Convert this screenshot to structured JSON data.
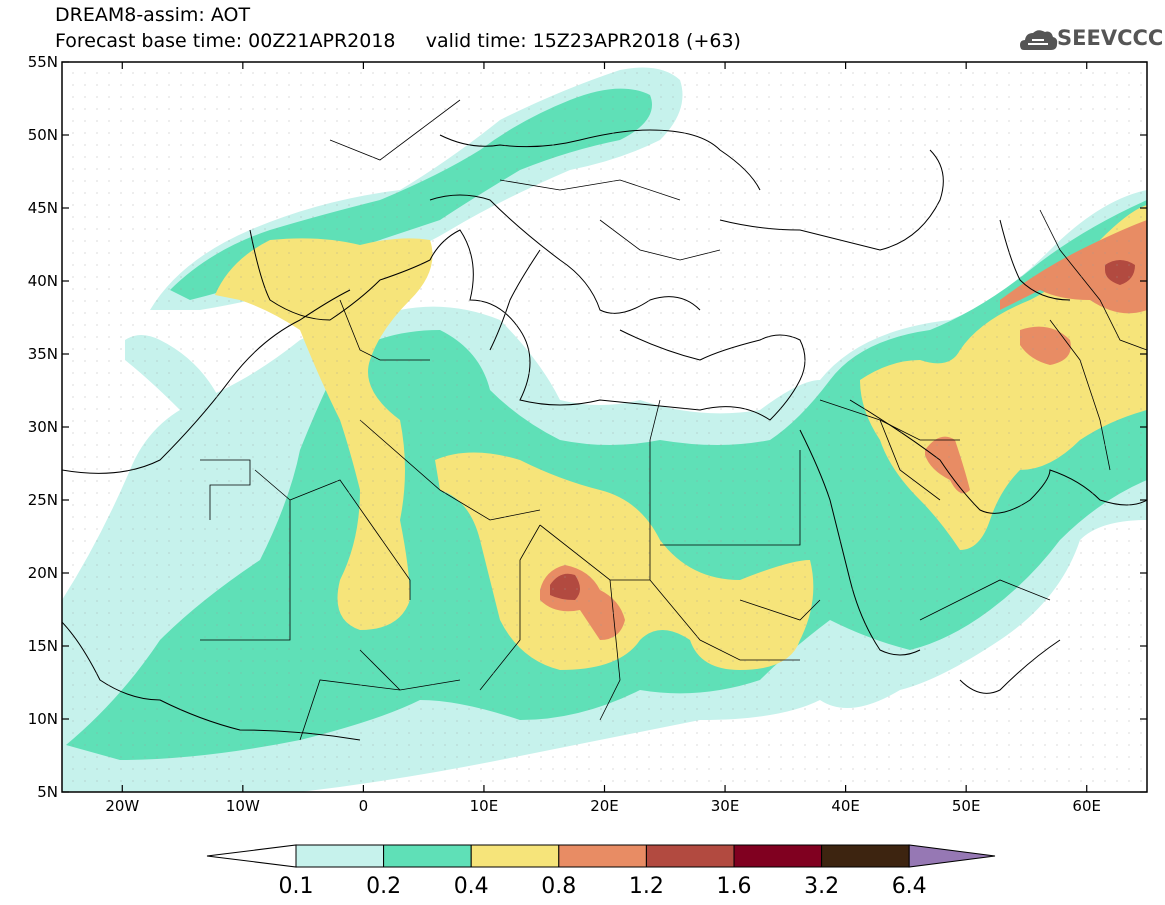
{
  "header": {
    "title": "DREAM8-assim: AOT",
    "subtitle_base": "Forecast base time: 00Z21APR2018",
    "subtitle_valid": "valid time: 15Z23APR2018 (+63)",
    "logo_text": "SEEVCCC",
    "logo_icon": "cloud-icon"
  },
  "map": {
    "lon_range": [
      -25,
      65
    ],
    "lat_range": [
      5,
      55
    ],
    "lat_ticks": [
      "55N",
      "50N",
      "45N",
      "40N",
      "35N",
      "30N",
      "25N",
      "20N",
      "15N",
      "10N",
      "5N"
    ],
    "lon_ticks": [
      "20W",
      "10W",
      "0",
      "10E",
      "20E",
      "30E",
      "40E",
      "50E",
      "60E"
    ]
  },
  "colorbar": {
    "labels": [
      "0.1",
      "0.2",
      "0.4",
      "0.8",
      "1.2",
      "1.6",
      "3.2",
      "6.4"
    ],
    "colors": [
      "#c6f2ec",
      "#5fe0b7",
      "#f6e47a",
      "#e88c64",
      "#b24a40",
      "#800020",
      "#3d2410",
      "#9678b4"
    ]
  },
  "colors": {
    "c1": "#c6f2ec",
    "c2": "#5fe0b7",
    "c3": "#f6e47a",
    "c4": "#e88c64",
    "c5": "#b24a40"
  }
}
